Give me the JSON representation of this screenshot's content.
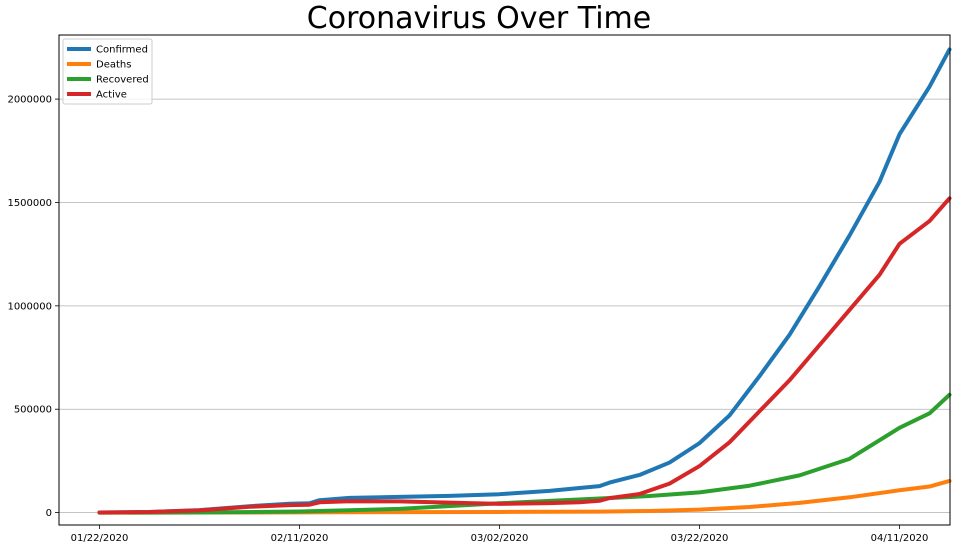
{
  "chart_data": {
    "type": "line",
    "title": "Coronavirus Over Time",
    "xlabel": "",
    "ylabel": "",
    "x_start": "01/22/2020",
    "x_end": "04/12/2020",
    "xticks": [
      "01/22/2020",
      "02/11/2020",
      "03/02/2020",
      "03/22/2020",
      "04/11/2020"
    ],
    "yticks": [
      0,
      500000,
      1000000,
      1500000,
      2000000
    ],
    "ylim": [
      -60000,
      2310000
    ],
    "grid": "y",
    "legend_position": "top-left",
    "series": [
      {
        "name": "Confirmed",
        "color": "#1f77b4",
        "points": [
          [
            "01/22/2020",
            555
          ],
          [
            "01/27/2020",
            2900
          ],
          [
            "02/01/2020",
            12000
          ],
          [
            "02/06/2020",
            31000
          ],
          [
            "02/10/2020",
            43000
          ],
          [
            "02/12/2020",
            45000
          ],
          [
            "02/13/2020",
            60000
          ],
          [
            "02/16/2020",
            71000
          ],
          [
            "02/21/2020",
            76000
          ],
          [
            "02/26/2020",
            81000
          ],
          [
            "03/02/2020",
            89000
          ],
          [
            "03/07/2020",
            105000
          ],
          [
            "03/10/2020",
            119000
          ],
          [
            "03/12/2020",
            128000
          ],
          [
            "03/13/2020",
            145000
          ],
          [
            "03/16/2020",
            182000
          ],
          [
            "03/19/2020",
            242000
          ],
          [
            "03/22/2020",
            336000
          ],
          [
            "03/25/2020",
            470000
          ],
          [
            "03/28/2020",
            660000
          ],
          [
            "03/31/2020",
            860000
          ],
          [
            "04/03/2020",
            1095000
          ],
          [
            "04/06/2020",
            1340000
          ],
          [
            "04/09/2020",
            1600000
          ],
          [
            "04/11/2020",
            1830000
          ],
          [
            "04/14/2020",
            2060000
          ],
          [
            "04/16/2020",
            2240000
          ]
        ]
      },
      {
        "name": "Deaths",
        "color": "#ff7f0e",
        "points": [
          [
            "01/22/2020",
            17
          ],
          [
            "02/01/2020",
            260
          ],
          [
            "02/11/2020",
            1100
          ],
          [
            "02/21/2020",
            2250
          ],
          [
            "03/02/2020",
            3100
          ],
          [
            "03/12/2020",
            4700
          ],
          [
            "03/17/2020",
            7900
          ],
          [
            "03/22/2020",
            14600
          ],
          [
            "03/27/2020",
            27000
          ],
          [
            "04/01/2020",
            47000
          ],
          [
            "04/06/2020",
            74000
          ],
          [
            "04/11/2020",
            108000
          ],
          [
            "04/14/2020",
            126000
          ],
          [
            "04/16/2020",
            153000
          ]
        ]
      },
      {
        "name": "Recovered",
        "color": "#2ca02c",
        "points": [
          [
            "01/22/2020",
            28
          ],
          [
            "02/01/2020",
            500
          ],
          [
            "02/11/2020",
            5000
          ],
          [
            "02/21/2020",
            18000
          ],
          [
            "03/02/2020",
            45000
          ],
          [
            "03/12/2020",
            68000
          ],
          [
            "03/17/2020",
            80000
          ],
          [
            "03/22/2020",
            98000
          ],
          [
            "03/27/2020",
            130000
          ],
          [
            "04/01/2020",
            180000
          ],
          [
            "04/06/2020",
            260000
          ],
          [
            "04/11/2020",
            410000
          ],
          [
            "04/14/2020",
            480000
          ],
          [
            "04/16/2020",
            570000
          ]
        ]
      },
      {
        "name": "Active",
        "color": "#d62728",
        "points": [
          [
            "01/22/2020",
            510
          ],
          [
            "01/27/2020",
            2700
          ],
          [
            "02/01/2020",
            11000
          ],
          [
            "02/06/2020",
            28000
          ],
          [
            "02/10/2020",
            36000
          ],
          [
            "02/12/2020",
            38000
          ],
          [
            "02/13/2020",
            50000
          ],
          [
            "02/16/2020",
            55000
          ],
          [
            "02/21/2020",
            54000
          ],
          [
            "02/26/2020",
            48000
          ],
          [
            "03/02/2020",
            42000
          ],
          [
            "03/07/2020",
            46000
          ],
          [
            "03/10/2020",
            50000
          ],
          [
            "03/12/2020",
            57000
          ],
          [
            "03/13/2020",
            70000
          ],
          [
            "03/16/2020",
            90000
          ],
          [
            "03/19/2020",
            140000
          ],
          [
            "03/22/2020",
            225000
          ],
          [
            "03/25/2020",
            340000
          ],
          [
            "03/28/2020",
            490000
          ],
          [
            "03/31/2020",
            640000
          ],
          [
            "04/03/2020",
            810000
          ],
          [
            "04/06/2020",
            980000
          ],
          [
            "04/09/2020",
            1150000
          ],
          [
            "04/11/2020",
            1300000
          ],
          [
            "04/14/2020",
            1410000
          ],
          [
            "04/16/2020",
            1520000
          ]
        ]
      }
    ]
  }
}
